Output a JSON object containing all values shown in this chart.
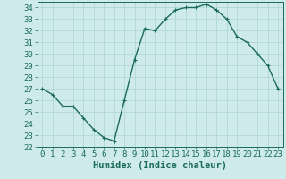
{
  "x": [
    0,
    1,
    2,
    3,
    4,
    5,
    6,
    7,
    8,
    9,
    10,
    11,
    12,
    13,
    14,
    15,
    16,
    17,
    18,
    19,
    20,
    21,
    22,
    23
  ],
  "y": [
    27.0,
    26.5,
    25.5,
    25.5,
    24.5,
    23.5,
    22.8,
    22.5,
    26.0,
    29.5,
    32.2,
    32.0,
    33.0,
    33.8,
    34.0,
    34.0,
    34.3,
    33.8,
    33.0,
    31.5,
    31.0,
    30.0,
    29.0,
    27.0
  ],
  "line_color": "#1a6b5a",
  "marker": "+",
  "marker_size": 3,
  "linewidth": 1.0,
  "xlabel": "Humidex (Indice chaleur)",
  "xlabel_fontsize": 7.5,
  "xlabel_weight": "bold",
  "ylim": [
    22,
    34.5
  ],
  "xlim": [
    -0.5,
    23.5
  ],
  "yticks": [
    22,
    23,
    24,
    25,
    26,
    27,
    28,
    29,
    30,
    31,
    32,
    33,
    34
  ],
  "xticks": [
    0,
    1,
    2,
    3,
    4,
    5,
    6,
    7,
    8,
    9,
    10,
    11,
    12,
    13,
    14,
    15,
    16,
    17,
    18,
    19,
    20,
    21,
    22,
    23
  ],
  "bg_color": "#ceeaea",
  "grid_color": "#b0d8d8",
  "tick_fontsize": 6.5,
  "tick_color": "#1a6b5a"
}
